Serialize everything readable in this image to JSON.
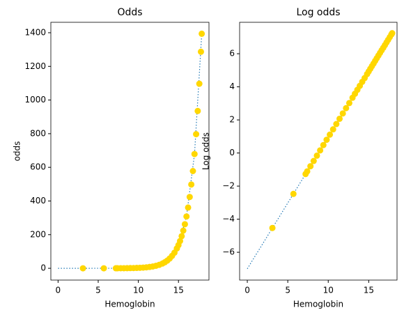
{
  "chart_data": [
    {
      "type": "scatter",
      "title": "Odds",
      "xlabel": "Hemoglobin",
      "ylabel": "odds",
      "xlim": [
        -0.9,
        18.8
      ],
      "ylim": [
        -70,
        1462
      ],
      "xticks": [
        0,
        5,
        10,
        15
      ],
      "yticks": [
        0,
        200,
        400,
        600,
        800,
        1000,
        1200,
        1400
      ],
      "line": {
        "color": "#1f77b4",
        "style": "dotted",
        "x": [
          0,
          1,
          2,
          3,
          4,
          5,
          6,
          7,
          8,
          9,
          10,
          11,
          12,
          13,
          14,
          15,
          16,
          17,
          17.9
        ],
        "y": [
          0,
          0.002,
          0.004,
          0.01,
          0.02,
          0.05,
          0.11,
          0.24,
          0.53,
          1.17,
          2.61,
          5.75,
          12.8,
          28.2,
          62.8,
          138,
          308,
          679,
          1394
        ]
      },
      "points": {
        "color": "#ffd700",
        "x": [
          3.1,
          5.7,
          7.2,
          7.4,
          7.8,
          8.2,
          8.6,
          9.0,
          9.4,
          9.8,
          10.2,
          10.6,
          11.0,
          11.4,
          11.8,
          12.2,
          12.6,
          13.0,
          13.3,
          13.6,
          13.9,
          14.2,
          14.5,
          14.8,
          15.0,
          15.2,
          15.4,
          15.6,
          15.8,
          16.0,
          16.2,
          16.4,
          16.6,
          16.8,
          17.0,
          17.2,
          17.4,
          17.6,
          17.8,
          17.9
        ],
        "y": [
          0.01,
          0.08,
          0.28,
          0.33,
          0.45,
          0.62,
          0.85,
          1.17,
          1.62,
          2.23,
          3.03,
          4.18,
          5.75,
          7.92,
          10.9,
          15.0,
          20.5,
          28.2,
          35.9,
          45.6,
          58.0,
          73.7,
          92.8,
          118,
          138,
          162,
          191,
          224,
          262,
          308,
          361,
          424,
          498,
          578,
          679,
          797,
          935,
          1097,
          1287,
          1394
        ]
      }
    },
    {
      "type": "scatter",
      "title": "Log odds",
      "xlabel": "Hemoglobin",
      "ylabel": "Log odds",
      "xlim": [
        -0.95,
        18.5
      ],
      "ylim": [
        -7.68,
        7.9
      ],
      "xticks": [
        0,
        5,
        10,
        15
      ],
      "yticks": [
        {
          "value": -6,
          "label": "−6"
        },
        {
          "value": -4,
          "label": "−4"
        },
        {
          "value": -2,
          "label": "−2"
        },
        0,
        2,
        4,
        6
      ],
      "line": {
        "color": "#1f77b4",
        "style": "dotted",
        "x": [
          0,
          1,
          2,
          3,
          4,
          5,
          6,
          7,
          8,
          9,
          10,
          11,
          12,
          13,
          14,
          15,
          16,
          17,
          17.9
        ],
        "y": [
          -7,
          -6.2,
          -5.41,
          -4.61,
          -3.82,
          -3.02,
          -2.23,
          -1.43,
          -0.64,
          0.16,
          0.96,
          1.75,
          2.55,
          3.34,
          4.14,
          4.93,
          5.73,
          6.52,
          7.24
        ]
      },
      "points": {
        "color": "#ffd700",
        "x": [
          3.1,
          5.7,
          7.2,
          7.4,
          7.8,
          8.2,
          8.6,
          9.0,
          9.4,
          9.8,
          10.2,
          10.6,
          11.0,
          11.4,
          11.8,
          12.2,
          12.6,
          13.0,
          13.3,
          13.6,
          13.9,
          14.2,
          14.5,
          14.8,
          15.0,
          15.2,
          15.4,
          15.6,
          15.8,
          16.0,
          16.2,
          16.4,
          16.6,
          16.8,
          17.0,
          17.2,
          17.4,
          17.6,
          17.8,
          17.9
        ],
        "y": [
          -4.53,
          -2.47,
          -1.27,
          -1.11,
          -0.8,
          -0.48,
          -0.16,
          0.16,
          0.48,
          0.8,
          1.11,
          1.43,
          1.75,
          2.07,
          2.39,
          2.71,
          3.02,
          3.34,
          3.58,
          3.82,
          4.06,
          4.3,
          4.53,
          4.77,
          4.93,
          5.09,
          5.25,
          5.41,
          5.57,
          5.73,
          5.89,
          6.05,
          6.21,
          6.36,
          6.52,
          6.68,
          6.84,
          7.0,
          7.16,
          7.24
        ]
      }
    }
  ]
}
